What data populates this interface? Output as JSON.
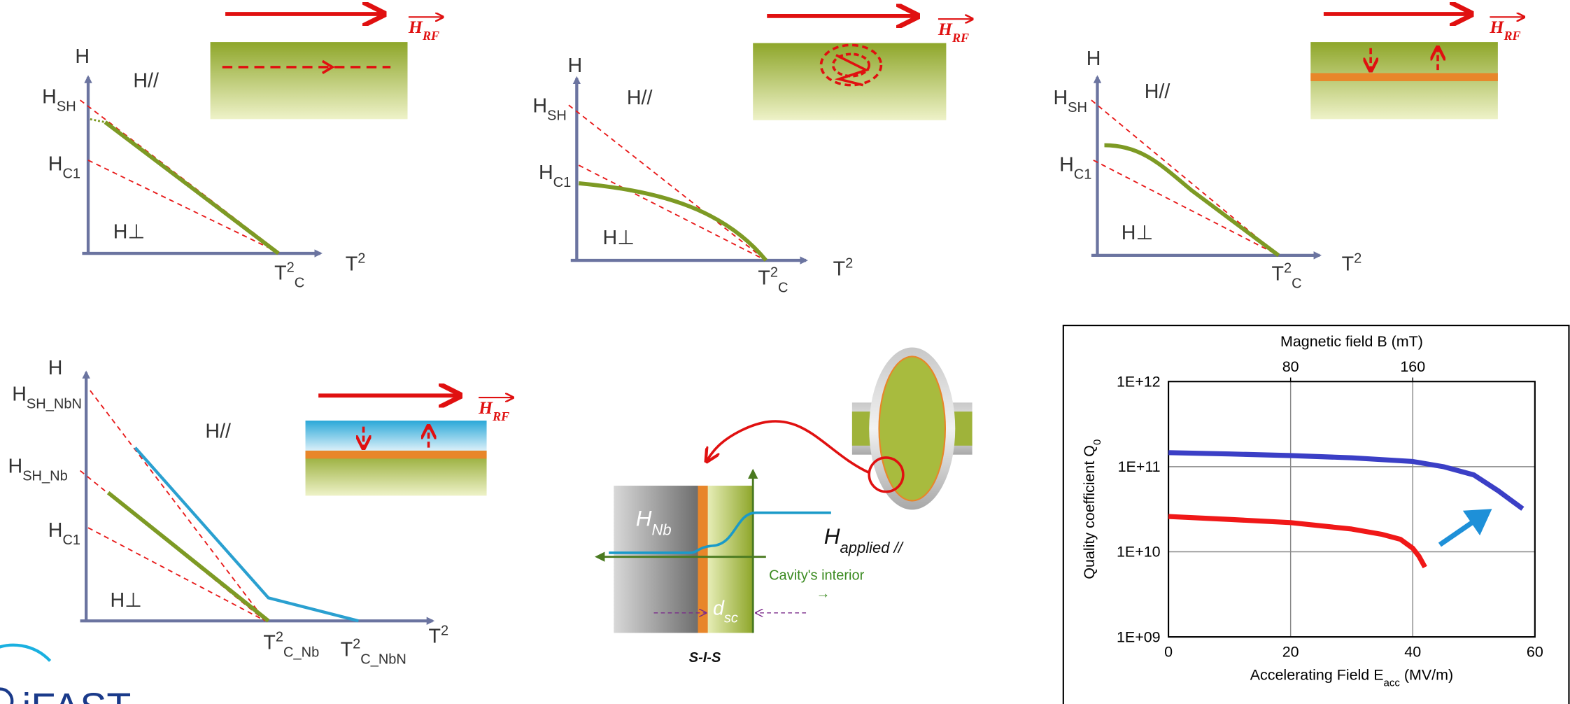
{
  "panels": [
    {
      "labels": [
        {
          "text": "H"
        },
        {
          "text": "H",
          "sub": "SH"
        },
        {
          "text": "H",
          "sub": "C1"
        },
        {
          "text": "H//"
        },
        {
          "text": "H⊥"
        },
        {
          "text": "T",
          "sup": "2",
          "sub": "C"
        },
        {
          "text": "T",
          "sup": "2"
        }
      ],
      "field": {
        "text": "H",
        "sub": "RF"
      }
    },
    {
      "labels": [
        {
          "text": "H"
        },
        {
          "text": "H",
          "sub": "SH"
        },
        {
          "text": "H",
          "sub": "C1"
        },
        {
          "text": "H//"
        },
        {
          "text": "H⊥"
        },
        {
          "text": "T",
          "sup": "2",
          "sub": "C"
        },
        {
          "text": "T",
          "sup": "2"
        }
      ],
      "field": {
        "text": "H",
        "sub": "RF"
      }
    },
    {
      "labels": [
        {
          "text": "H"
        },
        {
          "text": "H",
          "sub": "SH"
        },
        {
          "text": "H",
          "sub": "C1"
        },
        {
          "text": "H//"
        },
        {
          "text": "H⊥"
        },
        {
          "text": "T",
          "sup": "2",
          "sub": "C"
        },
        {
          "text": "T",
          "sup": "2"
        }
      ],
      "field": {
        "text": "H",
        "sub": "RF"
      }
    },
    {
      "labels": [
        {
          "text": "H"
        },
        {
          "text": "H",
          "sub": "SH_NbN"
        },
        {
          "text": "H",
          "sub": "SH_Nb"
        },
        {
          "text": "H",
          "sub": "C1"
        },
        {
          "text": "H//"
        },
        {
          "text": "H⊥"
        },
        {
          "text": "T",
          "sup": "2",
          "sub": "C_Nb"
        },
        {
          "text": "T",
          "sup": "2",
          "sub": "C_NbN"
        },
        {
          "text": "T",
          "sup": "2"
        }
      ],
      "field": {
        "text": "H",
        "sub": "RF"
      }
    }
  ],
  "sis": {
    "hnb": {
      "text": "H",
      "sub": "Nb"
    },
    "dsc": {
      "text": "d",
      "sub": "sc"
    },
    "applied": {
      "text": "H",
      "sub": "applied //"
    },
    "interior": "Cavity's interior",
    "arrow": "→",
    "caption": "S-I-S"
  },
  "chart_data": {
    "type": "line",
    "x2_label": "Magnetic field B (mT)",
    "x_label": {
      "text": "Accelerating Field E",
      "sub": "acc",
      "tail": " (MV/m)"
    },
    "y_label": {
      "text": "Quality coefficient Q",
      "sub": "0"
    },
    "xlim": [
      0,
      60
    ],
    "xticks": [
      0,
      20,
      40,
      60
    ],
    "x2lim": [
      0,
      240
    ],
    "x2ticks": [
      80,
      160
    ],
    "ylim": [
      1000000000,
      1000000000000
    ],
    "log_y": true,
    "grid": true,
    "yticks": [
      {
        "value": 1000000000,
        "label": "1E+09"
      },
      {
        "value": 10000000000,
        "label": "1E+10"
      },
      {
        "value": 100000000000,
        "label": "1E+11"
      },
      {
        "value": 1000000000000,
        "label": "1E+12"
      }
    ],
    "series": [
      {
        "color": "#3b3fc6",
        "x": [
          0,
          10,
          20,
          30,
          40,
          45,
          50,
          54,
          58
        ],
        "values": [
          146000000000,
          141000000000,
          135000000000,
          127000000000,
          115000000000,
          100000000000,
          80000000000,
          52000000000,
          32000000000
        ]
      },
      {
        "color": "#f01818",
        "x": [
          0,
          10,
          20,
          30,
          35,
          38,
          40,
          41,
          42
        ],
        "values": [
          26000000000,
          24000000000,
          22000000000,
          18500000000,
          16000000000,
          14000000000,
          11000000000,
          8900000000,
          6600000000
        ]
      }
    ]
  },
  "logo": "iFAST"
}
